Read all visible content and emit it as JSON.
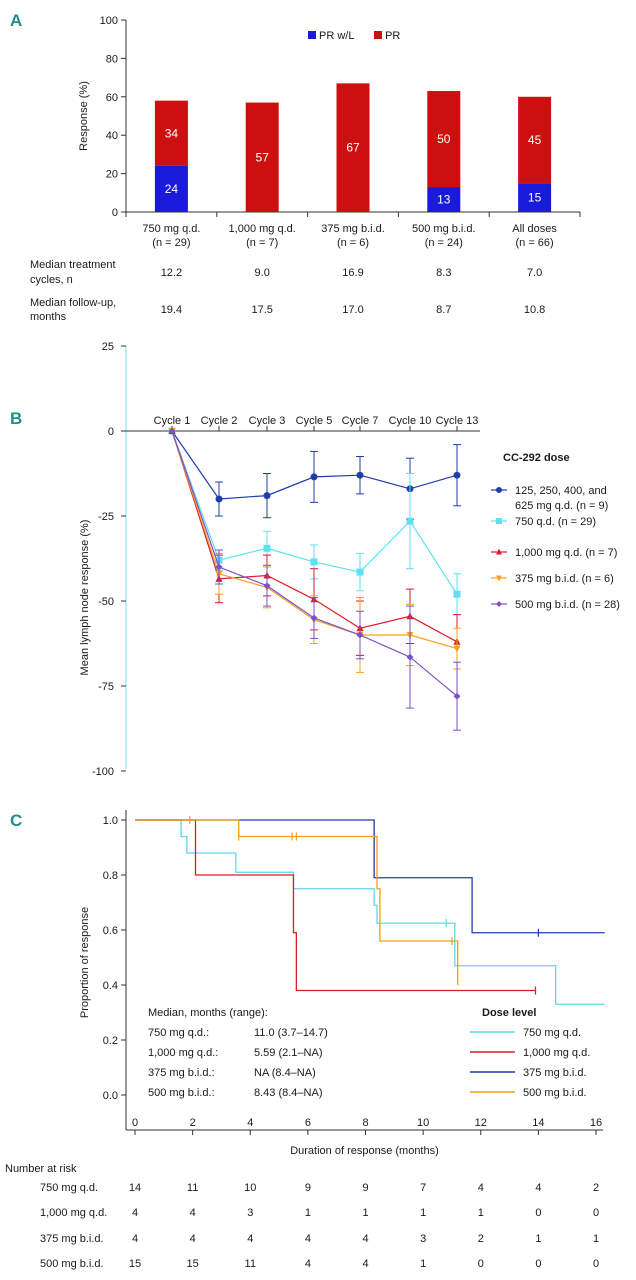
{
  "panels": {
    "a": "A",
    "b": "B",
    "c": "C"
  },
  "chart_data": [
    {
      "id": "A",
      "type": "bar",
      "stacked": true,
      "ylabel": "Response (%)",
      "ylim": [
        0,
        100
      ],
      "yticks": [
        0,
        20,
        40,
        60,
        80,
        100
      ],
      "categories": [
        [
          "750 mg q.d.",
          "(n = 29)"
        ],
        [
          "1,000 mg q.d.",
          "(n = 7)"
        ],
        [
          "375 mg b.i.d.",
          "(n = 6)"
        ],
        [
          "500 mg b.i.d.",
          "(n = 24)"
        ],
        [
          "All doses",
          "(n = 66)"
        ]
      ],
      "series": [
        {
          "name": "PR w/L",
          "color": "#1a1adb",
          "values": [
            24,
            0,
            0,
            13,
            15
          ],
          "labels": [
            "24",
            "",
            "",
            "13",
            "15"
          ]
        },
        {
          "name": "PR",
          "color": "#cc1010",
          "values": [
            34,
            57,
            67,
            50,
            45
          ],
          "labels": [
            "34",
            "57",
            "67",
            "50",
            "45"
          ]
        }
      ],
      "legend": "top-right",
      "table_rows": [
        {
          "label": [
            "Median treatment",
            "cycles, n"
          ],
          "values": [
            "12.2",
            "9.0",
            "16.9",
            "8.3",
            "7.0"
          ]
        },
        {
          "label": [
            "Median follow-up,",
            "months"
          ],
          "values": [
            "19.4",
            "17.5",
            "17.0",
            "8.7",
            "10.8"
          ]
        }
      ]
    },
    {
      "id": "B",
      "type": "line",
      "ylabel": "Mean lymph node response (%)",
      "ylim": [
        -100,
        25
      ],
      "yticks": [
        25,
        0,
        -25,
        -50,
        -75,
        -100
      ],
      "ytick_labels": [
        "25",
        "0",
        "-25",
        "-50",
        "-75",
        "-100"
      ],
      "x": [
        "Cycle 1",
        "Cycle 2",
        "Cycle 3",
        "Cycle 5",
        "Cycle 7",
        "Cycle 10",
        "Cycle 13"
      ],
      "legend_title": "CC-292 dose",
      "legend": "right",
      "series": [
        {
          "name": [
            "125, 250, 400, and",
            "625 mg q.d. (n = 9)"
          ],
          "color": "#1f3fa8",
          "marker": "circle",
          "values": [
            0,
            -20,
            -19,
            -13.5,
            -13,
            -17,
            -13
          ],
          "err": [
            0,
            5,
            6.5,
            7.5,
            5.5,
            9,
            9
          ]
        },
        {
          "name": [
            "750 q.d. (n = 29)"
          ],
          "color": "#5fe0f0",
          "marker": "square",
          "values": [
            0,
            -38,
            -34.5,
            -38.5,
            -41.5,
            -26.5,
            -48
          ],
          "err": [
            0,
            3,
            5,
            5,
            5.5,
            14,
            6
          ]
        },
        {
          "name": [
            "1,000 mg q.d. (n = 7)"
          ],
          "color": "#e0182c",
          "marker": "triangle",
          "values": [
            0,
            -43.5,
            -42.5,
            -49.5,
            -58,
            -54.5,
            -62
          ],
          "err": [
            0,
            7,
            6,
            9,
            8,
            8,
            8
          ]
        },
        {
          "name": [
            "375 mg b.i.d. (n = 6)"
          ],
          "color": "#f5a21a",
          "marker": "triangle-down",
          "values": [
            0,
            -42,
            -46,
            -55.5,
            -60,
            -60,
            -64
          ],
          "err": [
            0,
            6,
            6,
            7,
            11,
            9,
            6
          ]
        },
        {
          "name": [
            "500 mg b.i.d. (n = 28)"
          ],
          "color": "#7b52c8",
          "marker": "diamond",
          "values": [
            0,
            -40,
            -45.5,
            -55,
            -60,
            -66.5,
            -78
          ],
          "err": [
            0,
            5,
            6,
            6,
            7,
            15,
            10
          ]
        }
      ]
    },
    {
      "id": "C",
      "type": "line",
      "subtype": "kaplan-meier",
      "xlabel": "Duration of response (months)",
      "ylabel": "Proportion of response",
      "xlim": [
        0,
        16.3
      ],
      "ylim": [
        0,
        1
      ],
      "xticks": [
        0,
        2,
        4,
        6,
        8,
        10,
        12,
        14,
        16
      ],
      "yticks": [
        0.0,
        0.2,
        0.4,
        0.6,
        0.8,
        1.0
      ],
      "ytick_labels": [
        "0.0",
        "0.2",
        "0.4",
        "0.6",
        "0.8",
        "1.0"
      ],
      "legend_title": "Dose level",
      "legend": "bottom-right",
      "series": [
        {
          "name": "750 mg q.d.",
          "color": "#5fd8e8",
          "steps": [
            [
              0,
              1.0
            ],
            [
              1.6,
              0.94
            ],
            [
              1.8,
              0.88
            ],
            [
              3.5,
              0.81
            ],
            [
              5.5,
              0.75
            ],
            [
              8.3,
              0.69
            ],
            [
              8.4,
              0.625
            ],
            [
              11.1,
              0.47
            ],
            [
              14.6,
              0.33
            ],
            [
              16.3,
              0.33
            ]
          ],
          "censors": [
            [
              10.8,
              0.625
            ]
          ]
        },
        {
          "name": "1,000 mg q.d.",
          "color": "#d62020",
          "steps": [
            [
              0,
              1.0
            ],
            [
              2.1,
              0.8
            ],
            [
              5.5,
              0.59
            ],
            [
              5.6,
              0.38
            ],
            [
              13.9,
              0.38
            ]
          ],
          "censors": [
            [
              13.9,
              0.38
            ]
          ]
        },
        {
          "name": "375 mg b.i.d.",
          "color": "#1f3fa8",
          "steps": [
            [
              0,
              1.0
            ],
            [
              8.3,
              0.79
            ],
            [
              11.7,
              0.59
            ],
            [
              16.3,
              0.59
            ]
          ],
          "censors": [
            [
              14.0,
              0.59
            ]
          ]
        },
        {
          "name": "500 mg b.i.d.",
          "color": "#f0a010",
          "steps": [
            [
              0,
              1.0
            ],
            [
              3.6,
              0.94
            ],
            [
              8.4,
              0.75
            ],
            [
              8.5,
              0.56
            ],
            [
              11.1,
              0.56
            ],
            [
              11.2,
              0.4
            ]
          ],
          "censors": [
            [
              1.9,
              1.0
            ],
            [
              3.6,
              0.94
            ],
            [
              5.45,
              0.94
            ],
            [
              5.6,
              0.94
            ],
            [
              11.0,
              0.56
            ]
          ]
        }
      ],
      "median_title": "Median, months (range):",
      "medians": [
        {
          "dose": "750 mg q.d.:",
          "value": "11.0 (3.7–14.7)"
        },
        {
          "dose": "1,000 mg q.d.:",
          "value": "5.59 (2.1–NA)"
        },
        {
          "dose": "375 mg b.i.d.:",
          "value": "NA (8.4–NA)"
        },
        {
          "dose": "500 mg b.i.d.:",
          "value": "8.43 (8.4–NA)"
        }
      ],
      "risk_title": "Number at risk",
      "risk_table": [
        {
          "dose": "750 mg q.d.",
          "values": [
            "14",
            "11",
            "10",
            "9",
            "9",
            "7",
            "4",
            "4",
            "2"
          ]
        },
        {
          "dose": "1,000 mg q.d.",
          "values": [
            "4",
            "4",
            "3",
            "1",
            "1",
            "1",
            "1",
            "0",
            "0"
          ]
        },
        {
          "dose": "375 mg b.i.d.",
          "values": [
            "4",
            "4",
            "4",
            "4",
            "4",
            "3",
            "2",
            "1",
            "1"
          ]
        },
        {
          "dose": "500 mg b.i.d.",
          "values": [
            "15",
            "15",
            "11",
            "4",
            "4",
            "1",
            "0",
            "0",
            "0"
          ]
        }
      ]
    }
  ]
}
